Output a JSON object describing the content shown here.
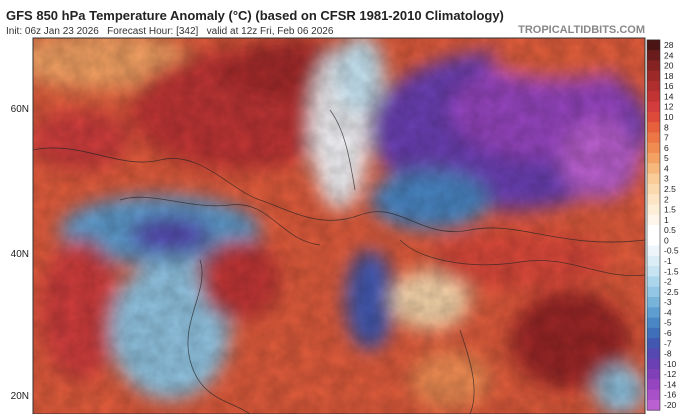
{
  "header": {
    "title": "GFS 850 hPa Temperature Anomaly (°C) (based on CFSR 1981-2010 Climatology)",
    "subtitle": "Init: 06z Jan 23 2026   Forecast Hour: [342]   valid at 12z Fri, Feb 06 2026",
    "watermark": "TROPICALTIDBITS.COM"
  },
  "map": {
    "latitude_labels": [
      "60N",
      "40N",
      "20N"
    ]
  },
  "colorbar": {
    "levels": [
      28,
      24,
      20,
      18,
      16,
      14,
      12,
      10,
      8,
      7,
      6,
      5,
      4,
      3,
      2.5,
      2,
      1.5,
      1,
      0.5,
      0,
      -0.5,
      -1,
      -1.5,
      -2,
      -2.5,
      -3,
      -4,
      -5,
      -6,
      -7,
      -8,
      -10,
      -12,
      -14,
      -16,
      -20
    ],
    "colors": [
      "#4a1414",
      "#6a1c1c",
      "#852222",
      "#9c2828",
      "#b02e2e",
      "#c23434",
      "#d23c3c",
      "#de4a3a",
      "#e6603c",
      "#ec7646",
      "#f08c52",
      "#f4a264",
      "#f7b87e",
      "#f9cc98",
      "#fbd9ae",
      "#fce4c4",
      "#fdeed8",
      "#fef6ea",
      "#ffffff",
      "#ffffff",
      "#eef6fb",
      "#dbeef7",
      "#c6e4f2",
      "#acd6ec",
      "#92c6e4",
      "#78b3da",
      "#5e9dcf",
      "#4a86c4",
      "#3e6fb8",
      "#4258b0",
      "#5548b0",
      "#6a40b4",
      "#8040b8",
      "#9645c0",
      "#a850c8",
      "#bb60d0"
    ]
  }
}
